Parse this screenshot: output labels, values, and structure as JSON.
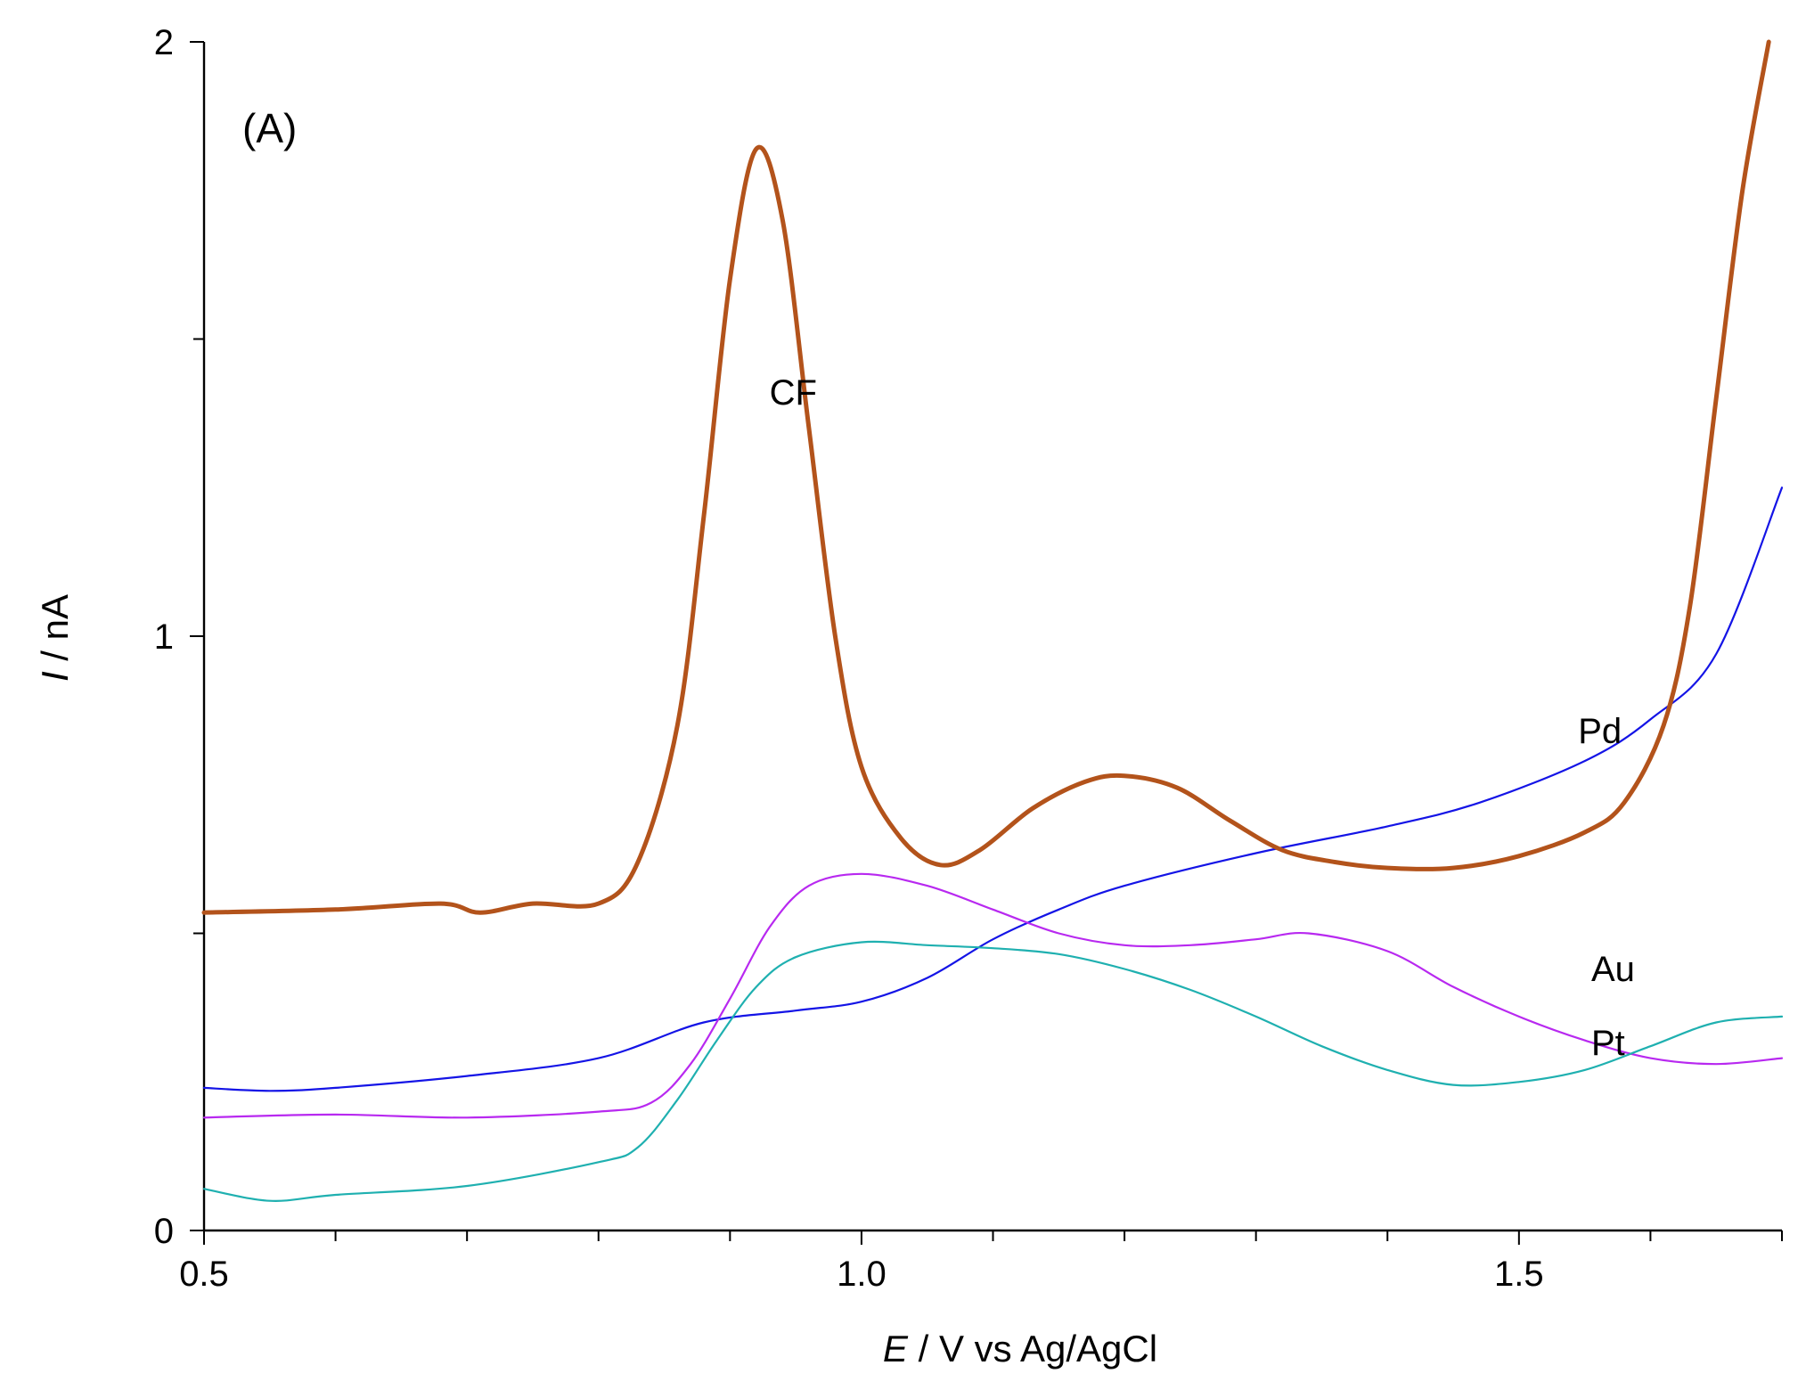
{
  "chart_data": {
    "type": "line",
    "panel_label": "(A)",
    "xlabel_var": "E",
    "xlabel_rest": " / V vs Ag/AgCl",
    "ylabel_var": "I",
    "ylabel_rest": " / nA",
    "xlim": [
      0.5,
      1.7
    ],
    "ylim": [
      0,
      2
    ],
    "x_major_ticks": [
      0.5,
      1.0,
      1.5
    ],
    "x_tick_labels": [
      "0.5",
      "1.0",
      "1.5"
    ],
    "x_minor_step": 0.1,
    "y_major_ticks": [
      0,
      1,
      2
    ],
    "y_tick_labels": [
      "0",
      "1",
      "2"
    ],
    "y_minor_ticks": [
      0.5,
      1.5
    ],
    "series": [
      {
        "name": "CF",
        "color": "#b3531b",
        "width": "thick",
        "label_at": [
          0.93,
          1.39
        ],
        "points": [
          [
            0.5,
            0.535
          ],
          [
            0.6,
            0.54
          ],
          [
            0.68,
            0.55
          ],
          [
            0.71,
            0.535
          ],
          [
            0.75,
            0.55
          ],
          [
            0.8,
            0.55
          ],
          [
            0.83,
            0.62
          ],
          [
            0.86,
            0.85
          ],
          [
            0.88,
            1.2
          ],
          [
            0.9,
            1.6
          ],
          [
            0.92,
            1.82
          ],
          [
            0.94,
            1.7
          ],
          [
            0.96,
            1.35
          ],
          [
            0.98,
            1.0
          ],
          [
            1.0,
            0.78
          ],
          [
            1.03,
            0.66
          ],
          [
            1.06,
            0.615
          ],
          [
            1.09,
            0.64
          ],
          [
            1.13,
            0.71
          ],
          [
            1.17,
            0.755
          ],
          [
            1.2,
            0.765
          ],
          [
            1.24,
            0.745
          ],
          [
            1.28,
            0.69
          ],
          [
            1.32,
            0.64
          ],
          [
            1.36,
            0.62
          ],
          [
            1.4,
            0.61
          ],
          [
            1.45,
            0.61
          ],
          [
            1.5,
            0.63
          ],
          [
            1.55,
            0.67
          ],
          [
            1.58,
            0.72
          ],
          [
            1.61,
            0.85
          ],
          [
            1.63,
            1.05
          ],
          [
            1.65,
            1.4
          ],
          [
            1.67,
            1.75
          ],
          [
            1.69,
            2.0
          ]
        ]
      },
      {
        "name": "Pd",
        "color": "#1414e6",
        "width": "thin",
        "label_at": [
          1.545,
          0.82
        ],
        "points": [
          [
            0.5,
            0.24
          ],
          [
            0.55,
            0.235
          ],
          [
            0.6,
            0.24
          ],
          [
            0.7,
            0.26
          ],
          [
            0.8,
            0.29
          ],
          [
            0.88,
            0.35
          ],
          [
            0.95,
            0.37
          ],
          [
            1.0,
            0.385
          ],
          [
            1.05,
            0.425
          ],
          [
            1.1,
            0.49
          ],
          [
            1.15,
            0.54
          ],
          [
            1.2,
            0.58
          ],
          [
            1.3,
            0.635
          ],
          [
            1.4,
            0.68
          ],
          [
            1.47,
            0.72
          ],
          [
            1.55,
            0.79
          ],
          [
            1.6,
            0.86
          ],
          [
            1.65,
            0.97
          ],
          [
            1.7,
            1.25
          ]
        ]
      },
      {
        "name": "Au",
        "color": "#b829f0",
        "width": "thin",
        "label_at": [
          1.555,
          0.42
        ],
        "points": [
          [
            0.5,
            0.19
          ],
          [
            0.6,
            0.195
          ],
          [
            0.7,
            0.19
          ],
          [
            0.8,
            0.2
          ],
          [
            0.84,
            0.215
          ],
          [
            0.87,
            0.28
          ],
          [
            0.9,
            0.39
          ],
          [
            0.93,
            0.51
          ],
          [
            0.96,
            0.58
          ],
          [
            1.0,
            0.6
          ],
          [
            1.05,
            0.58
          ],
          [
            1.1,
            0.54
          ],
          [
            1.15,
            0.5
          ],
          [
            1.2,
            0.48
          ],
          [
            1.25,
            0.48
          ],
          [
            1.3,
            0.49
          ],
          [
            1.34,
            0.5
          ],
          [
            1.4,
            0.47
          ],
          [
            1.45,
            0.41
          ],
          [
            1.5,
            0.36
          ],
          [
            1.55,
            0.32
          ],
          [
            1.6,
            0.29
          ],
          [
            1.65,
            0.28
          ],
          [
            1.7,
            0.29
          ]
        ]
      },
      {
        "name": "Pt",
        "color": "#1fb0b0",
        "width": "thin",
        "label_at": [
          1.555,
          0.295
        ],
        "points": [
          [
            0.5,
            0.07
          ],
          [
            0.55,
            0.05
          ],
          [
            0.6,
            0.06
          ],
          [
            0.7,
            0.075
          ],
          [
            0.8,
            0.115
          ],
          [
            0.83,
            0.14
          ],
          [
            0.86,
            0.22
          ],
          [
            0.89,
            0.32
          ],
          [
            0.92,
            0.41
          ],
          [
            0.95,
            0.46
          ],
          [
            1.0,
            0.485
          ],
          [
            1.05,
            0.48
          ],
          [
            1.1,
            0.475
          ],
          [
            1.15,
            0.465
          ],
          [
            1.2,
            0.44
          ],
          [
            1.25,
            0.405
          ],
          [
            1.3,
            0.36
          ],
          [
            1.35,
            0.31
          ],
          [
            1.4,
            0.27
          ],
          [
            1.45,
            0.245
          ],
          [
            1.5,
            0.25
          ],
          [
            1.55,
            0.27
          ],
          [
            1.6,
            0.31
          ],
          [
            1.65,
            0.35
          ],
          [
            1.7,
            0.36
          ]
        ]
      }
    ]
  }
}
